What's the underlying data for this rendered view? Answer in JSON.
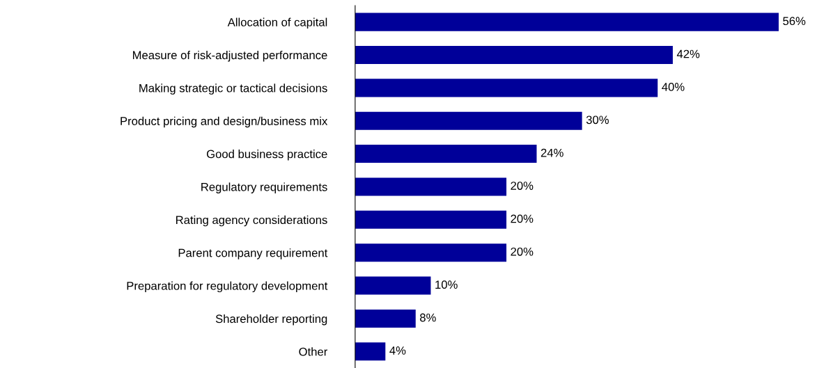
{
  "chart_data": {
    "type": "bar",
    "orientation": "horizontal",
    "categories": [
      "Allocation of capital",
      "Measure of risk-adjusted performance",
      "Making strategic or tactical decisions",
      "Product pricing and design/business mix",
      "Good business practice",
      "Regulatory requirements",
      "Rating agency considerations",
      "Parent company requirement",
      "Preparation for regulatory development",
      "Shareholder reporting",
      "Other"
    ],
    "values": [
      56,
      42,
      40,
      30,
      24,
      20,
      20,
      20,
      10,
      8,
      4
    ],
    "value_labels": [
      "56%",
      "42%",
      "40%",
      "30%",
      "24%",
      "20%",
      "20%",
      "20%",
      "10%",
      "8%",
      "4%"
    ],
    "color": "#000099",
    "tick_labels": "y",
    "grid": false,
    "legend": false
  }
}
